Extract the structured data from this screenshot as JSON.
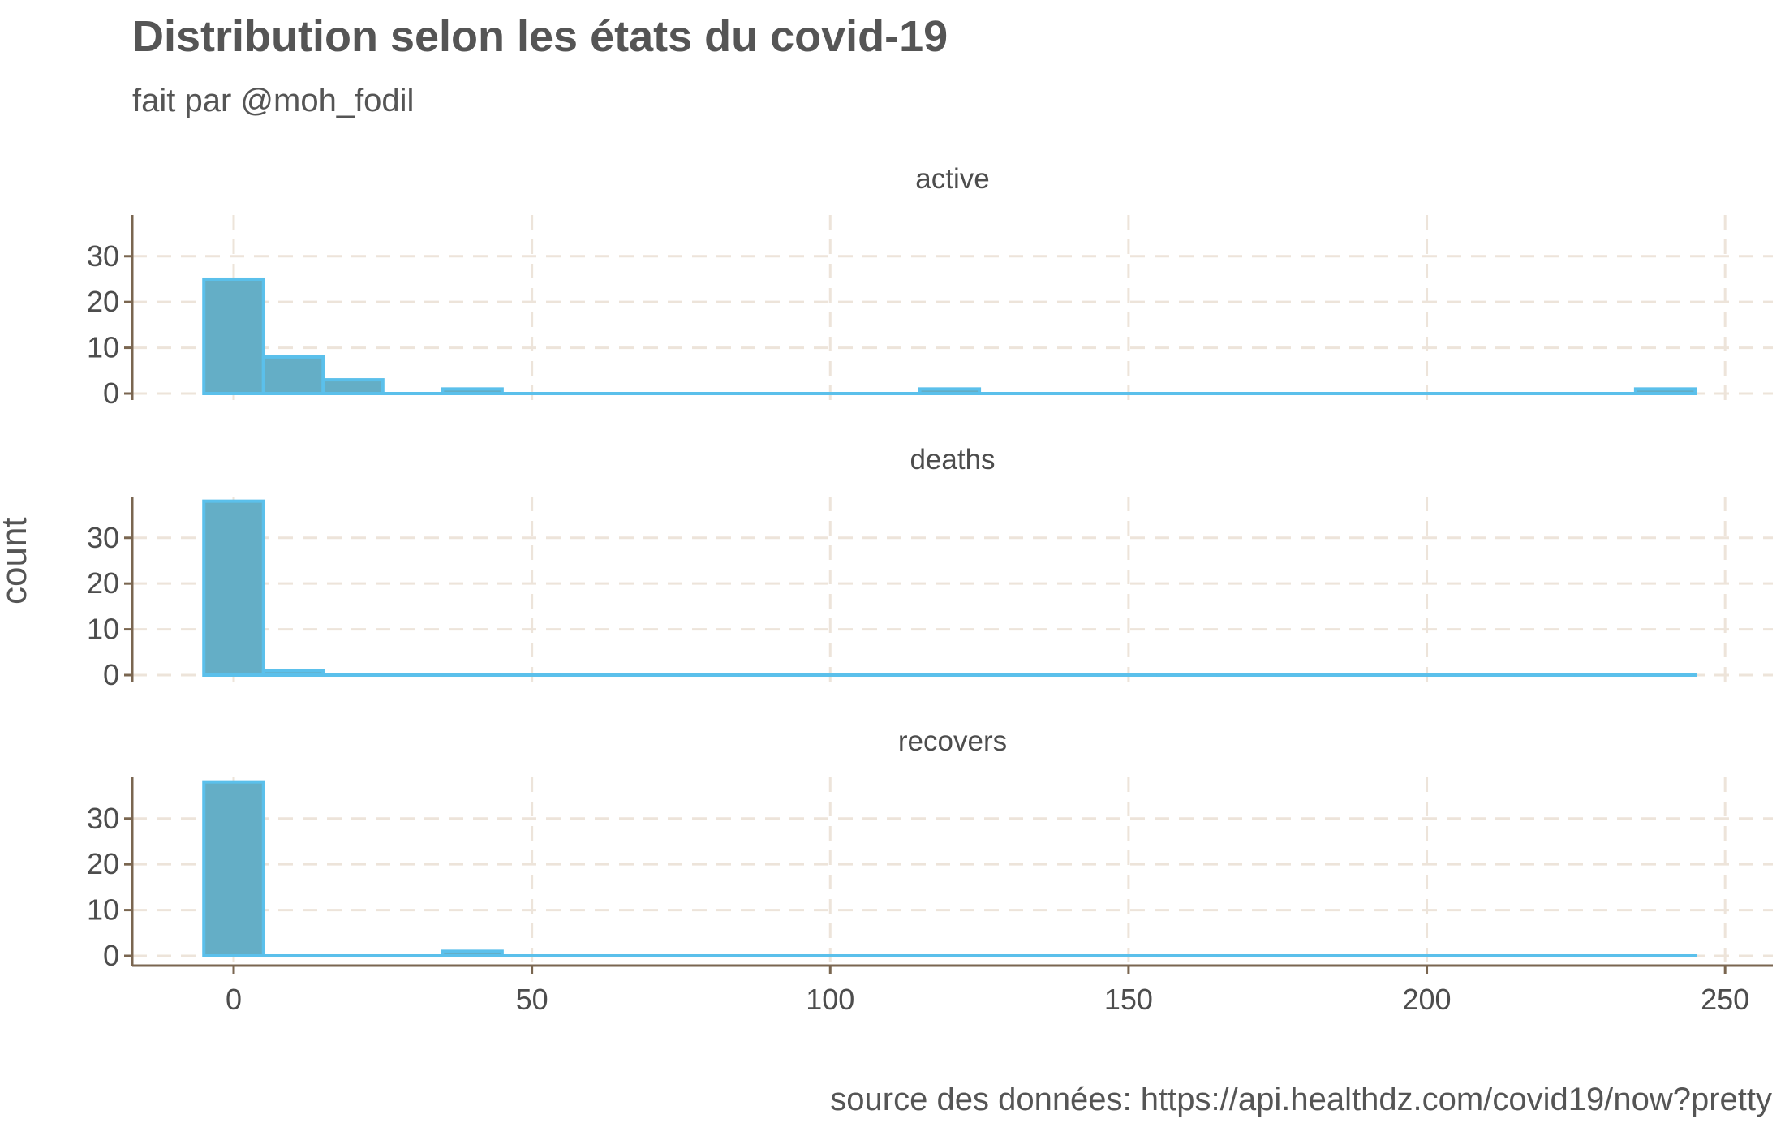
{
  "title": "Distribution selon les états du covid-19",
  "subtitle": "fait par @moh_fodil",
  "caption": "source des données: https://api.healthdz.com/covid19/now?pretty",
  "ylabel": "count",
  "colors": {
    "bar_fill": "#64AEC6",
    "bar_outline": "#5BC0EB",
    "grid": "#EDE4DA",
    "axis": "#7A6650",
    "text": "#4d4d4d"
  },
  "chart_data": {
    "type": "bar",
    "subtype": "faceted histogram",
    "bin_width": 10,
    "bin_starts": [
      -5,
      5,
      15,
      25,
      35,
      45,
      55,
      65,
      75,
      85,
      95,
      105,
      115,
      125,
      135,
      145,
      155,
      165,
      175,
      185,
      195,
      205,
      215,
      225,
      235
    ],
    "xlim": [
      -17,
      258
    ],
    "ylim": [
      0,
      39
    ],
    "x_ticks": [
      0,
      50,
      100,
      150,
      200,
      250
    ],
    "y_ticks": [
      0,
      10,
      20,
      30
    ],
    "grid": true,
    "facets": [
      {
        "name": "active",
        "counts": [
          25,
          8,
          3,
          0,
          1,
          0,
          0,
          0,
          0,
          0,
          0,
          0,
          1,
          0,
          0,
          0,
          0,
          0,
          0,
          0,
          0,
          0,
          0,
          0,
          1
        ]
      },
      {
        "name": "deaths",
        "counts": [
          38,
          1,
          0,
          0,
          0,
          0,
          0,
          0,
          0,
          0,
          0,
          0,
          0,
          0,
          0,
          0,
          0,
          0,
          0,
          0,
          0,
          0,
          0,
          0,
          0
        ]
      },
      {
        "name": "recovers",
        "counts": [
          38,
          0,
          0,
          0,
          1,
          0,
          0,
          0,
          0,
          0,
          0,
          0,
          0,
          0,
          0,
          0,
          0,
          0,
          0,
          0,
          0,
          0,
          0,
          0,
          0
        ]
      }
    ]
  }
}
